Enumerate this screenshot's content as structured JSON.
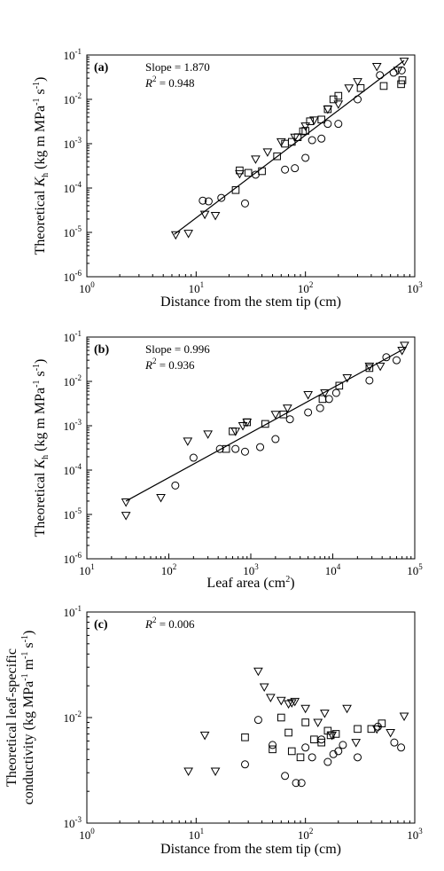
{
  "chart_data": [
    {
      "type": "scatter",
      "panel_label": "(a)",
      "xlabel": "Distance from the stem tip (cm)",
      "ylabel_prefix": "Theoretical ",
      "ylabel_symbol": "K",
      "ylabel_sub": "h",
      "ylabel_units": " (kg m MPa",
      "ylabel_exp1": "-1",
      "ylabel_mid": " s",
      "ylabel_exp2": "-1",
      "ylabel_close": ")",
      "x_scale": "log",
      "y_scale": "log",
      "xlim": [
        1,
        1000
      ],
      "ylim": [
        1e-06,
        0.1
      ],
      "x_ticks": [
        {
          "value": 1,
          "base": "10",
          "exp": "0"
        },
        {
          "value": 10,
          "base": "10",
          "exp": "1"
        },
        {
          "value": 100,
          "base": "10",
          "exp": "2"
        },
        {
          "value": 1000,
          "base": "10",
          "exp": "3"
        }
      ],
      "y_ticks": [
        {
          "value": 1e-06,
          "base": "10",
          "exp": "-6"
        },
        {
          "value": 1e-05,
          "base": "10",
          "exp": "-5"
        },
        {
          "value": 0.0001,
          "base": "10",
          "exp": "-4"
        },
        {
          "value": 0.001,
          "base": "10",
          "exp": "-3"
        },
        {
          "value": 0.01,
          "base": "10",
          "exp": "-2"
        },
        {
          "value": 0.1,
          "base": "10",
          "exp": "-1"
        }
      ],
      "annotations": [
        {
          "text": "Slope = 1.870"
        },
        {
          "prefix": "",
          "italic": "R",
          "sup": "2",
          "suffix": " = 0.948"
        }
      ],
      "fit_line": {
        "x": [
          6.3,
          800
        ],
        "y": [
          9e-06,
          0.075
        ]
      },
      "series": [
        {
          "marker": "triangle-down",
          "x": [
            6.5,
            8.5,
            12,
            15,
            25,
            35,
            45,
            60,
            80,
            100,
            120,
            160,
            200,
            250,
            300,
            450,
            700,
            800
          ],
          "y": [
            8.8e-06,
            9.5e-06,
            2.55e-05,
            2.4e-05,
            0.00021,
            0.00045,
            0.00065,
            0.0011,
            0.0014,
            0.0025,
            0.0034,
            0.006,
            0.0078,
            0.018,
            0.025,
            0.055,
            0.045,
            0.072
          ]
        },
        {
          "marker": "square",
          "x": [
            23,
            25,
            30,
            40,
            55,
            65,
            75,
            85,
            95,
            100,
            110,
            140,
            160,
            180,
            200,
            320,
            520,
            750,
            770
          ],
          "y": [
            9e-05,
            0.00025,
            0.00022,
            0.00024,
            0.00052,
            0.001,
            0.0011,
            0.0014,
            0.0019,
            0.00195,
            0.0032,
            0.0035,
            0.006,
            0.01,
            0.012,
            0.018,
            0.02,
            0.022,
            0.027
          ]
        },
        {
          "marker": "circle",
          "x": [
            11.5,
            13,
            17,
            28,
            35,
            65,
            80,
            100,
            115,
            140,
            160,
            200,
            300,
            480,
            640,
            760
          ],
          "y": [
            5.2e-05,
            5e-05,
            6e-05,
            4.5e-05,
            0.0002,
            0.00026,
            0.00028,
            0.00048,
            0.0012,
            0.0013,
            0.0028,
            0.0028,
            0.01,
            0.035,
            0.04,
            0.045
          ]
        }
      ]
    },
    {
      "type": "scatter",
      "panel_label": "(b)",
      "xlabel_main": "Leaf area (cm",
      "xlabel_sup": "2",
      "xlabel_close": ")",
      "ylabel_prefix": "Theoretical ",
      "ylabel_symbol": "K",
      "ylabel_sub": "h",
      "ylabel_units": " (kg m MPa",
      "ylabel_exp1": "-1",
      "ylabel_mid": " s",
      "ylabel_exp2": "-1",
      "ylabel_close": ")",
      "x_scale": "log",
      "y_scale": "log",
      "xlim": [
        10,
        100000
      ],
      "ylim": [
        1e-06,
        0.1
      ],
      "x_ticks": [
        {
          "value": 10,
          "base": "10",
          "exp": "1"
        },
        {
          "value": 100,
          "base": "10",
          "exp": "2"
        },
        {
          "value": 1000,
          "base": "10",
          "exp": "3"
        },
        {
          "value": 10000,
          "base": "10",
          "exp": "4"
        },
        {
          "value": 100000,
          "base": "10",
          "exp": "5"
        }
      ],
      "y_ticks": [
        {
          "value": 1e-06,
          "base": "10",
          "exp": "-6"
        },
        {
          "value": 1e-05,
          "base": "10",
          "exp": "-5"
        },
        {
          "value": 0.0001,
          "base": "10",
          "exp": "-4"
        },
        {
          "value": 0.001,
          "base": "10",
          "exp": "-3"
        },
        {
          "value": 0.01,
          "base": "10",
          "exp": "-2"
        },
        {
          "value": 0.1,
          "base": "10",
          "exp": "-1"
        }
      ],
      "annotations": [
        {
          "text": "Slope = 0.996"
        },
        {
          "prefix": "",
          "italic": "R",
          "sup": "2",
          "suffix": " = 0.936"
        }
      ],
      "fit_line": {
        "x": [
          30,
          75000
        ],
        "y": [
          2e-05,
          0.055
        ]
      },
      "series": [
        {
          "marker": "triangle-down",
          "x": [
            30,
            30,
            80,
            170,
            300,
            650,
            800,
            900,
            2000,
            2800,
            5000,
            8000,
            15000,
            28000,
            38000,
            70000,
            75000
          ],
          "y": [
            9.5e-06,
            1.9e-05,
            2.4e-05,
            0.00045,
            0.00065,
            0.00075,
            0.001,
            0.0012,
            0.0018,
            0.0025,
            0.005,
            0.0055,
            0.012,
            0.022,
            0.022,
            0.05,
            0.065
          ]
        },
        {
          "marker": "square",
          "x": [
            500,
            600,
            900,
            1500,
            2500,
            7500,
            12000,
            28000
          ],
          "y": [
            0.0003,
            0.00075,
            0.0012,
            0.0011,
            0.0018,
            0.004,
            0.008,
            0.02
          ]
        },
        {
          "marker": "circle",
          "x": [
            120,
            200,
            420,
            650,
            850,
            1300,
            2000,
            3000,
            5000,
            7000,
            9000,
            11000,
            28000,
            45000,
            60000
          ],
          "y": [
            4.5e-05,
            0.00019,
            0.0003,
            0.0003,
            0.00026,
            0.00033,
            0.0005,
            0.0014,
            0.002,
            0.0025,
            0.004,
            0.0055,
            0.0105,
            0.035,
            0.03
          ]
        }
      ]
    },
    {
      "type": "scatter",
      "panel_label": "(c)",
      "xlabel": "Distance from the stem tip (cm)",
      "ylabel_line1": "Theoretical leaf-specific",
      "ylabel_line2_main": "conductivity (kg MPa",
      "ylabel_line2_exp1": "-1",
      "ylabel_line2_mid": " m",
      "ylabel_line2_exp2": "-1",
      "ylabel_line2_mid2": " s",
      "ylabel_line2_exp3": "-1",
      "ylabel_line2_close": ")",
      "x_scale": "log",
      "y_scale": "log",
      "xlim": [
        1,
        1000
      ],
      "ylim": [
        0.001,
        0.1
      ],
      "x_ticks": [
        {
          "value": 1,
          "base": "10",
          "exp": "0"
        },
        {
          "value": 10,
          "base": "10",
          "exp": "1"
        },
        {
          "value": 100,
          "base": "10",
          "exp": "2"
        },
        {
          "value": 1000,
          "base": "10",
          "exp": "3"
        }
      ],
      "y_ticks": [
        {
          "value": 0.001,
          "base": "10",
          "exp": "-3"
        },
        {
          "value": 0.01,
          "base": "10",
          "exp": "-2"
        },
        {
          "value": 0.1,
          "base": "10",
          "exp": "-1"
        }
      ],
      "annotations": [
        {
          "prefix": "",
          "italic": "R",
          "sup": "2",
          "suffix": " = 0.006"
        }
      ],
      "series": [
        {
          "marker": "triangle-down",
          "x": [
            8.5,
            12,
            15,
            37,
            42,
            48,
            60,
            70,
            75,
            80,
            100,
            130,
            150,
            175,
            240,
            290,
            450,
            600,
            800
          ],
          "y": [
            0.0031,
            0.0068,
            0.0031,
            0.0275,
            0.0195,
            0.0155,
            0.0145,
            0.0135,
            0.0138,
            0.0142,
            0.0122,
            0.009,
            0.011,
            0.0068,
            0.0122,
            0.0058,
            0.0078,
            0.0072,
            0.0103
          ]
        },
        {
          "marker": "square",
          "x": [
            28,
            50,
            60,
            70,
            75,
            90,
            100,
            120,
            140,
            160,
            170,
            190,
            300,
            400,
            500
          ],
          "y": [
            0.0065,
            0.005,
            0.01,
            0.0072,
            0.0048,
            0.0042,
            0.009,
            0.0062,
            0.0058,
            0.0075,
            0.0068,
            0.007,
            0.0078,
            0.0078,
            0.0088
          ]
        },
        {
          "marker": "circle",
          "x": [
            28,
            37,
            50,
            65,
            82,
            92,
            100,
            115,
            140,
            160,
            180,
            200,
            220,
            300,
            460,
            650,
            750
          ],
          "y": [
            0.0036,
            0.0095,
            0.0055,
            0.0028,
            0.0024,
            0.0024,
            0.0052,
            0.0042,
            0.0062,
            0.0038,
            0.0045,
            0.0048,
            0.0055,
            0.0042,
            0.0082,
            0.0058,
            0.0052
          ]
        }
      ]
    }
  ]
}
